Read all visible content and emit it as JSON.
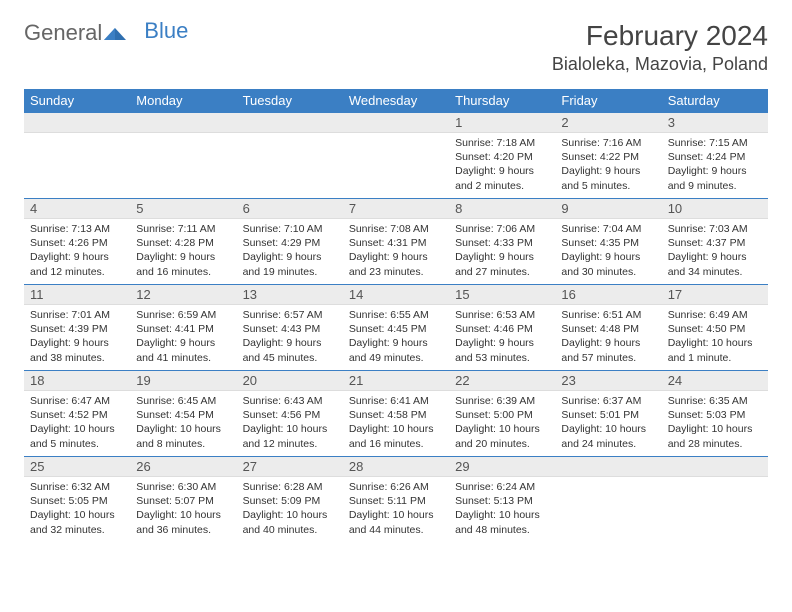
{
  "logo": {
    "text1": "General",
    "text2": "Blue"
  },
  "title": "February 2024",
  "location": "Bialoleka, Mazovia, Poland",
  "colors": {
    "header_bg": "#3b7fc4",
    "header_text": "#ffffff",
    "daynum_bg": "#ececec",
    "border": "#3b7fc4",
    "text": "#333333"
  },
  "weekdays": [
    "Sunday",
    "Monday",
    "Tuesday",
    "Wednesday",
    "Thursday",
    "Friday",
    "Saturday"
  ],
  "first_day_index": 4,
  "days": [
    {
      "n": 1,
      "sr": "7:18 AM",
      "ss": "4:20 PM",
      "d": "9 hours and 2 minutes."
    },
    {
      "n": 2,
      "sr": "7:16 AM",
      "ss": "4:22 PM",
      "d": "9 hours and 5 minutes."
    },
    {
      "n": 3,
      "sr": "7:15 AM",
      "ss": "4:24 PM",
      "d": "9 hours and 9 minutes."
    },
    {
      "n": 4,
      "sr": "7:13 AM",
      "ss": "4:26 PM",
      "d": "9 hours and 12 minutes."
    },
    {
      "n": 5,
      "sr": "7:11 AM",
      "ss": "4:28 PM",
      "d": "9 hours and 16 minutes."
    },
    {
      "n": 6,
      "sr": "7:10 AM",
      "ss": "4:29 PM",
      "d": "9 hours and 19 minutes."
    },
    {
      "n": 7,
      "sr": "7:08 AM",
      "ss": "4:31 PM",
      "d": "9 hours and 23 minutes."
    },
    {
      "n": 8,
      "sr": "7:06 AM",
      "ss": "4:33 PM",
      "d": "9 hours and 27 minutes."
    },
    {
      "n": 9,
      "sr": "7:04 AM",
      "ss": "4:35 PM",
      "d": "9 hours and 30 minutes."
    },
    {
      "n": 10,
      "sr": "7:03 AM",
      "ss": "4:37 PM",
      "d": "9 hours and 34 minutes."
    },
    {
      "n": 11,
      "sr": "7:01 AM",
      "ss": "4:39 PM",
      "d": "9 hours and 38 minutes."
    },
    {
      "n": 12,
      "sr": "6:59 AM",
      "ss": "4:41 PM",
      "d": "9 hours and 41 minutes."
    },
    {
      "n": 13,
      "sr": "6:57 AM",
      "ss": "4:43 PM",
      "d": "9 hours and 45 minutes."
    },
    {
      "n": 14,
      "sr": "6:55 AM",
      "ss": "4:45 PM",
      "d": "9 hours and 49 minutes."
    },
    {
      "n": 15,
      "sr": "6:53 AM",
      "ss": "4:46 PM",
      "d": "9 hours and 53 minutes."
    },
    {
      "n": 16,
      "sr": "6:51 AM",
      "ss": "4:48 PM",
      "d": "9 hours and 57 minutes."
    },
    {
      "n": 17,
      "sr": "6:49 AM",
      "ss": "4:50 PM",
      "d": "10 hours and 1 minute."
    },
    {
      "n": 18,
      "sr": "6:47 AM",
      "ss": "4:52 PM",
      "d": "10 hours and 5 minutes."
    },
    {
      "n": 19,
      "sr": "6:45 AM",
      "ss": "4:54 PM",
      "d": "10 hours and 8 minutes."
    },
    {
      "n": 20,
      "sr": "6:43 AM",
      "ss": "4:56 PM",
      "d": "10 hours and 12 minutes."
    },
    {
      "n": 21,
      "sr": "6:41 AM",
      "ss": "4:58 PM",
      "d": "10 hours and 16 minutes."
    },
    {
      "n": 22,
      "sr": "6:39 AM",
      "ss": "5:00 PM",
      "d": "10 hours and 20 minutes."
    },
    {
      "n": 23,
      "sr": "6:37 AM",
      "ss": "5:01 PM",
      "d": "10 hours and 24 minutes."
    },
    {
      "n": 24,
      "sr": "6:35 AM",
      "ss": "5:03 PM",
      "d": "10 hours and 28 minutes."
    },
    {
      "n": 25,
      "sr": "6:32 AM",
      "ss": "5:05 PM",
      "d": "10 hours and 32 minutes."
    },
    {
      "n": 26,
      "sr": "6:30 AM",
      "ss": "5:07 PM",
      "d": "10 hours and 36 minutes."
    },
    {
      "n": 27,
      "sr": "6:28 AM",
      "ss": "5:09 PM",
      "d": "10 hours and 40 minutes."
    },
    {
      "n": 28,
      "sr": "6:26 AM",
      "ss": "5:11 PM",
      "d": "10 hours and 44 minutes."
    },
    {
      "n": 29,
      "sr": "6:24 AM",
      "ss": "5:13 PM",
      "d": "10 hours and 48 minutes."
    }
  ]
}
